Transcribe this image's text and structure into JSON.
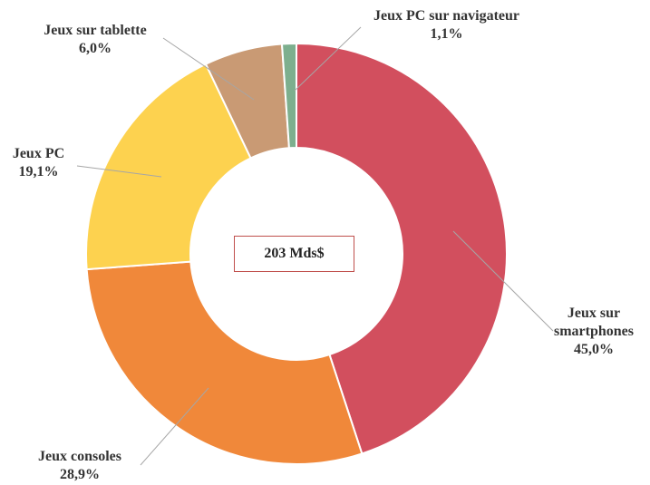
{
  "chart_data": {
    "type": "donut",
    "center_label": "203 Mds$",
    "categories": [
      "Jeux sur smartphones",
      "Jeux consoles",
      "Jeux PC",
      "Jeux sur tablette",
      "Jeux PC sur navigateur"
    ],
    "values": [
      45.0,
      28.9,
      19.1,
      6.0,
      1.1
    ],
    "value_labels": [
      "45,0%",
      "28,9%",
      "19,1%",
      "6,0%",
      "1,1%"
    ],
    "colors": [
      "#D24F5E",
      "#F0883A",
      "#FDD24F",
      "#C99A74",
      "#7DAF8E"
    ]
  }
}
